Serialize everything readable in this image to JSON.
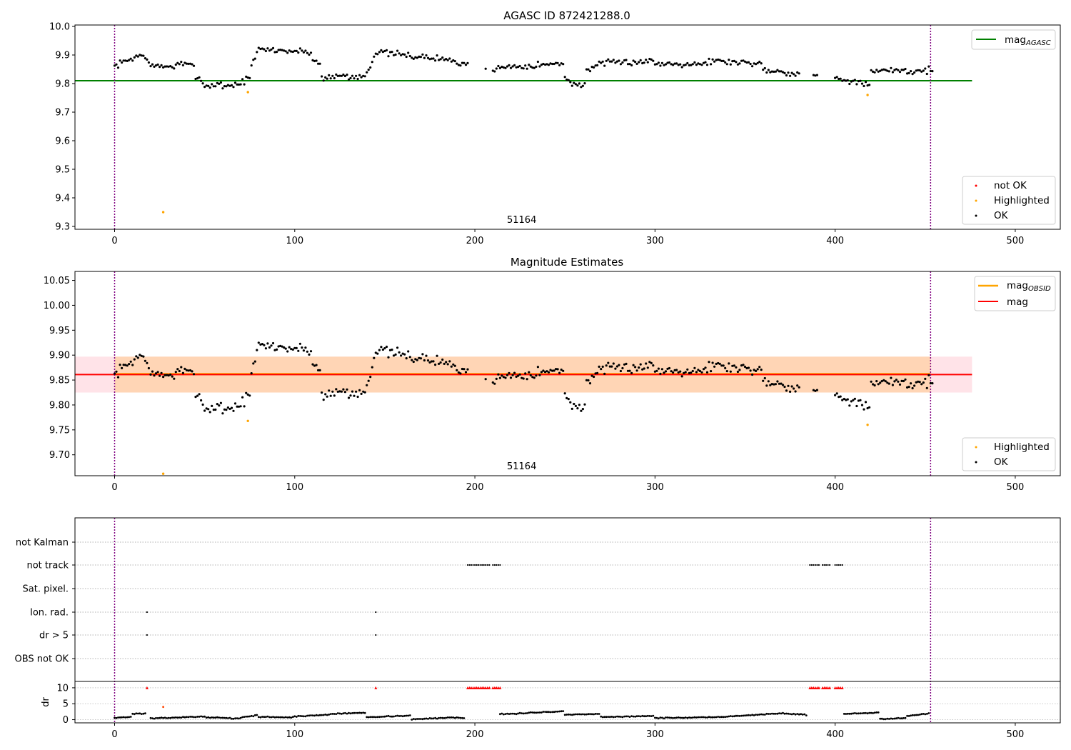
{
  "chart_data": [
    {
      "type": "scatter",
      "title": "AGASC ID 872421288.0",
      "xlim": [
        -22,
        525
      ],
      "ylim": [
        9.29,
        10.005
      ],
      "xticks": [
        0,
        100,
        200,
        300,
        400,
        500
      ],
      "yticks": [
        9.3,
        9.4,
        9.5,
        9.6,
        9.7,
        9.8,
        9.9,
        10.0
      ],
      "ytick_decimals": 1,
      "obsid_label": {
        "text": "51164",
        "x": 226
      },
      "vlines": [
        0,
        453
      ],
      "hline": {
        "name": "mag",
        "subscript": "AGASC",
        "y": 9.81,
        "x": [
          -22,
          476
        ],
        "color": "#008000"
      },
      "line_legend": "upper right",
      "point_legend": "lower right",
      "point_legend_entries": [
        {
          "name": "not OK",
          "color": "#ff0000"
        },
        {
          "name": "Highlighted",
          "color": "#ffa500"
        },
        {
          "name": "OK",
          "color": "#000000"
        }
      ],
      "highlighted": [
        [
          27,
          9.35
        ],
        [
          74,
          9.77
        ],
        [
          418,
          9.76
        ]
      ],
      "segments": [
        [
          0,
          3,
          9.86,
          9.87
        ],
        [
          3,
          14,
          9.87,
          9.9
        ],
        [
          14,
          20,
          9.9,
          9.88
        ],
        [
          20,
          35,
          9.86,
          9.86
        ],
        [
          35,
          45,
          9.87,
          9.86
        ],
        [
          45,
          50,
          9.83,
          9.8
        ],
        [
          50,
          60,
          9.79,
          9.8
        ],
        [
          60,
          70,
          9.79,
          9.8
        ],
        [
          70,
          76,
          9.8,
          9.83
        ],
        [
          76,
          80,
          9.86,
          9.92
        ],
        [
          80,
          110,
          9.92,
          9.91
        ],
        [
          110,
          115,
          9.88,
          9.87
        ],
        [
          115,
          130,
          9.82,
          9.83
        ],
        [
          130,
          140,
          9.82,
          9.83
        ],
        [
          140,
          146,
          9.84,
          9.92
        ],
        [
          146,
          160,
          9.91,
          9.9
        ],
        [
          160,
          190,
          9.9,
          9.88
        ],
        [
          190,
          196,
          9.87,
          9.86
        ],
        [
          196,
          206,
          9.88,
          9.87
        ],
        [
          206,
          220,
          9.85,
          9.86
        ],
        [
          220,
          250,
          9.86,
          9.87
        ],
        [
          250,
          254,
          9.82,
          9.81
        ],
        [
          254,
          262,
          9.8,
          9.79
        ],
        [
          262,
          270,
          9.85,
          9.87
        ],
        [
          270,
          300,
          9.87,
          9.88
        ],
        [
          300,
          330,
          9.87,
          9.87
        ],
        [
          330,
          360,
          9.88,
          9.87
        ],
        [
          360,
          372,
          9.85,
          9.84
        ],
        [
          372,
          385,
          9.84,
          9.83
        ],
        [
          385,
          400,
          9.83,
          9.82
        ],
        [
          400,
          410,
          9.82,
          9.81
        ],
        [
          410,
          420,
          9.81,
          9.79
        ],
        [
          420,
          440,
          9.84,
          9.85
        ],
        [
          440,
          455,
          9.84,
          9.85
        ]
      ],
      "gaps": [
        [
          196,
          206
        ],
        [
          206,
          210
        ],
        [
          380,
          388
        ],
        [
          390,
          400
        ]
      ]
    },
    {
      "type": "scatter",
      "title": "Magnitude Estimates",
      "xlim": [
        -22,
        525
      ],
      "ylim": [
        9.658,
        10.068
      ],
      "xticks": [
        0,
        100,
        200,
        300,
        400,
        500
      ],
      "yticks": [
        9.7,
        9.75,
        9.8,
        9.85,
        9.9,
        9.95,
        10.0,
        10.05
      ],
      "ytick_decimals": 2,
      "obsid_label": {
        "text": "51164",
        "x": 226
      },
      "vlines": [
        0,
        453
      ],
      "bands": [
        {
          "y": [
            9.825,
            9.897
          ],
          "x": [
            -22,
            476
          ],
          "color": "#ffc0cb",
          "opacity": 0.45
        },
        {
          "y": [
            9.825,
            9.897
          ],
          "x": [
            0,
            453
          ],
          "color": "#ffa500",
          "opacity": 0.22
        }
      ],
      "hlines": [
        {
          "name": "mag",
          "subscript": "OBSID",
          "y": 9.862,
          "x": [
            0,
            453
          ],
          "color": "#ffa500",
          "width": 3
        },
        {
          "name": "mag",
          "subscript": "",
          "y": 9.861,
          "x": [
            -22,
            476
          ],
          "color": "#ff0000",
          "width": 2
        }
      ],
      "line_legend": "upper right",
      "point_legend": "lower right",
      "point_legend_entries": [
        {
          "name": "Highlighted",
          "color": "#ffa500"
        },
        {
          "name": "OK",
          "color": "#000000"
        }
      ],
      "highlighted": [
        [
          27,
          9.662
        ],
        [
          74,
          9.768
        ],
        [
          418,
          9.76
        ]
      ],
      "segments": [
        [
          0,
          3,
          9.86,
          9.87
        ],
        [
          3,
          14,
          9.87,
          9.9
        ],
        [
          14,
          20,
          9.9,
          9.88
        ],
        [
          20,
          35,
          9.86,
          9.86
        ],
        [
          35,
          45,
          9.87,
          9.86
        ],
        [
          45,
          50,
          9.83,
          9.8
        ],
        [
          50,
          60,
          9.79,
          9.8
        ],
        [
          60,
          70,
          9.79,
          9.8
        ],
        [
          70,
          76,
          9.8,
          9.83
        ],
        [
          76,
          80,
          9.86,
          9.92
        ],
        [
          80,
          110,
          9.92,
          9.91
        ],
        [
          110,
          115,
          9.88,
          9.87
        ],
        [
          115,
          130,
          9.82,
          9.83
        ],
        [
          130,
          140,
          9.82,
          9.83
        ],
        [
          140,
          146,
          9.84,
          9.92
        ],
        [
          146,
          160,
          9.91,
          9.9
        ],
        [
          160,
          190,
          9.9,
          9.88
        ],
        [
          190,
          196,
          9.87,
          9.86
        ],
        [
          196,
          206,
          9.88,
          9.87
        ],
        [
          206,
          220,
          9.85,
          9.86
        ],
        [
          220,
          250,
          9.86,
          9.87
        ],
        [
          250,
          254,
          9.82,
          9.81
        ],
        [
          254,
          262,
          9.8,
          9.79
        ],
        [
          262,
          270,
          9.85,
          9.87
        ],
        [
          270,
          300,
          9.87,
          9.88
        ],
        [
          300,
          330,
          9.87,
          9.87
        ],
        [
          330,
          360,
          9.88,
          9.87
        ],
        [
          360,
          372,
          9.85,
          9.84
        ],
        [
          372,
          385,
          9.84,
          9.83
        ],
        [
          385,
          400,
          9.83,
          9.82
        ],
        [
          400,
          410,
          9.82,
          9.81
        ],
        [
          410,
          420,
          9.81,
          9.79
        ],
        [
          420,
          440,
          9.84,
          9.85
        ],
        [
          440,
          455,
          9.84,
          9.85
        ]
      ],
      "gaps": [
        [
          196,
          206
        ],
        [
          206,
          210
        ],
        [
          380,
          388
        ],
        [
          390,
          400
        ]
      ]
    },
    {
      "type": "scatter",
      "title": "",
      "xlim": [
        -22,
        525
      ],
      "xticks": [
        0,
        100,
        200,
        300,
        400,
        500
      ],
      "vlines": [
        0,
        453
      ],
      "flag_categories": [
        "not Kalman",
        "not track",
        "Sat. pixel.",
        "Ion. rad.",
        "dr > 5",
        "OBS not OK"
      ],
      "flags": {
        "not track": [
          [
            196,
            202
          ],
          [
            203,
            208
          ],
          [
            210,
            214
          ],
          [
            386,
            391
          ],
          [
            393,
            397
          ],
          [
            400,
            404
          ]
        ],
        "Ion. rad.": [
          [
            18,
            18
          ],
          [
            145,
            145
          ]
        ],
        "dr > 5": [
          [
            18,
            18
          ],
          [
            145,
            145
          ]
        ]
      },
      "dr": {
        "ylabel": "dr",
        "ylim": [
          -1,
          12
        ],
        "yticks": [
          0,
          5,
          10
        ],
        "clip_value": 10,
        "clipped": [
          [
            18,
            18
          ],
          [
            145,
            145
          ],
          [
            196,
            202
          ],
          [
            203,
            208
          ],
          [
            210,
            214
          ],
          [
            386,
            391
          ],
          [
            393,
            397
          ],
          [
            400,
            404
          ]
        ],
        "highlighted": [
          [
            27,
            4
          ]
        ],
        "segments": [
          [
            0,
            10,
            0.6,
            0.9
          ],
          [
            10,
            18,
            1.8,
            2.0
          ],
          [
            20,
            30,
            0.4,
            0.5
          ],
          [
            30,
            50,
            0.6,
            1.0
          ],
          [
            50,
            70,
            0.8,
            0.3
          ],
          [
            70,
            80,
            0.6,
            1.5
          ],
          [
            80,
            100,
            0.9,
            0.7
          ],
          [
            100,
            120,
            1.0,
            1.6
          ],
          [
            120,
            140,
            1.8,
            2.2
          ],
          [
            140,
            165,
            0.8,
            1.3
          ],
          [
            165,
            185,
            0.1,
            0.6
          ],
          [
            185,
            195,
            0.7,
            0.5
          ],
          [
            213,
            230,
            1.8,
            2.0
          ],
          [
            230,
            250,
            2.2,
            2.6
          ],
          [
            250,
            270,
            1.5,
            1.8
          ],
          [
            270,
            300,
            0.8,
            1.2
          ],
          [
            300,
            340,
            0.5,
            0.8
          ],
          [
            340,
            370,
            1.0,
            2.0
          ],
          [
            370,
            385,
            2.0,
            1.5
          ],
          [
            405,
            425,
            1.8,
            2.2
          ],
          [
            425,
            440,
            0.2,
            0.6
          ],
          [
            440,
            453,
            1.2,
            2.0
          ]
        ],
        "gaps": [
          [
            195,
            214
          ],
          [
            385,
            405
          ]
        ]
      }
    }
  ]
}
